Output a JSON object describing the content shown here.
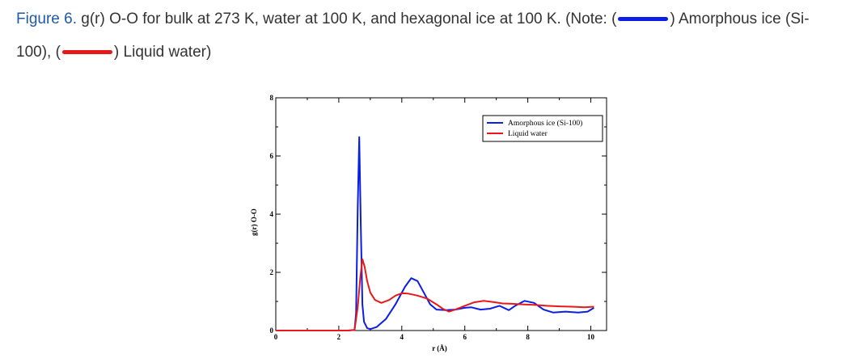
{
  "caption": {
    "figure_label": "Figure 6.",
    "text_part1": " g(r) O-O for bulk at 273 K, water at 100 K, and hexagonal ice at 100 K. (Note: (",
    "text_part2": ") Amorphous ice (Si-",
    "text_part3": "100), (",
    "text_part4": ") Liquid water)"
  },
  "colors": {
    "blue": "#0a1ee6",
    "red": "#e61a1a",
    "caption_blue": "#1f5aa6"
  },
  "chart_data": {
    "type": "line",
    "title": "",
    "xlabel": "r (Å)",
    "ylabel": "g(r) O-O",
    "xlim": [
      0,
      10.5
    ],
    "ylim": [
      0,
      8
    ],
    "x_ticks": [
      "0",
      "2",
      "4",
      "6",
      "8",
      "10"
    ],
    "y_ticks": [
      "0",
      "2",
      "4",
      "6",
      "8"
    ],
    "legend_position": "top-right",
    "series": [
      {
        "name": "Amorphous ice (Si-100)",
        "color": "#0a1ee6",
        "points": [
          [
            0,
            0
          ],
          [
            2.3,
            0
          ],
          [
            2.5,
            0.02
          ],
          [
            2.55,
            0.6
          ],
          [
            2.6,
            4.2
          ],
          [
            2.65,
            6.65
          ],
          [
            2.7,
            3.5
          ],
          [
            2.75,
            0.9
          ],
          [
            2.8,
            0.3
          ],
          [
            2.9,
            0.08
          ],
          [
            3.0,
            0.05
          ],
          [
            3.2,
            0.12
          ],
          [
            3.5,
            0.4
          ],
          [
            3.8,
            0.9
          ],
          [
            4.1,
            1.5
          ],
          [
            4.3,
            1.8
          ],
          [
            4.5,
            1.7
          ],
          [
            4.7,
            1.3
          ],
          [
            4.9,
            0.9
          ],
          [
            5.1,
            0.72
          ],
          [
            5.4,
            0.7
          ],
          [
            5.7,
            0.72
          ],
          [
            6.0,
            0.78
          ],
          [
            6.2,
            0.8
          ],
          [
            6.5,
            0.72
          ],
          [
            6.8,
            0.75
          ],
          [
            7.1,
            0.85
          ],
          [
            7.4,
            0.7
          ],
          [
            7.6,
            0.85
          ],
          [
            7.9,
            1.02
          ],
          [
            8.2,
            0.95
          ],
          [
            8.5,
            0.72
          ],
          [
            8.8,
            0.62
          ],
          [
            9.2,
            0.65
          ],
          [
            9.6,
            0.62
          ],
          [
            9.9,
            0.65
          ],
          [
            10.1,
            0.78
          ]
        ]
      },
      {
        "name": "Liquid water",
        "color": "#e61a1a",
        "points": [
          [
            0,
            0
          ],
          [
            2.3,
            0
          ],
          [
            2.5,
            0.02
          ],
          [
            2.6,
            0.8
          ],
          [
            2.68,
            1.8
          ],
          [
            2.75,
            2.45
          ],
          [
            2.82,
            2.2
          ],
          [
            2.9,
            1.7
          ],
          [
            3.0,
            1.3
          ],
          [
            3.15,
            1.05
          ],
          [
            3.35,
            0.95
          ],
          [
            3.6,
            1.05
          ],
          [
            3.8,
            1.2
          ],
          [
            4.0,
            1.28
          ],
          [
            4.2,
            1.27
          ],
          [
            4.5,
            1.2
          ],
          [
            4.8,
            1.1
          ],
          [
            5.1,
            0.9
          ],
          [
            5.3,
            0.75
          ],
          [
            5.5,
            0.65
          ],
          [
            5.7,
            0.72
          ],
          [
            6.0,
            0.85
          ],
          [
            6.3,
            0.97
          ],
          [
            6.6,
            1.02
          ],
          [
            6.9,
            0.98
          ],
          [
            7.2,
            0.93
          ],
          [
            7.5,
            0.92
          ],
          [
            7.8,
            0.9
          ],
          [
            8.2,
            0.88
          ],
          [
            8.6,
            0.85
          ],
          [
            9.0,
            0.83
          ],
          [
            9.4,
            0.82
          ],
          [
            9.8,
            0.8
          ],
          [
            10.1,
            0.82
          ]
        ]
      }
    ]
  }
}
